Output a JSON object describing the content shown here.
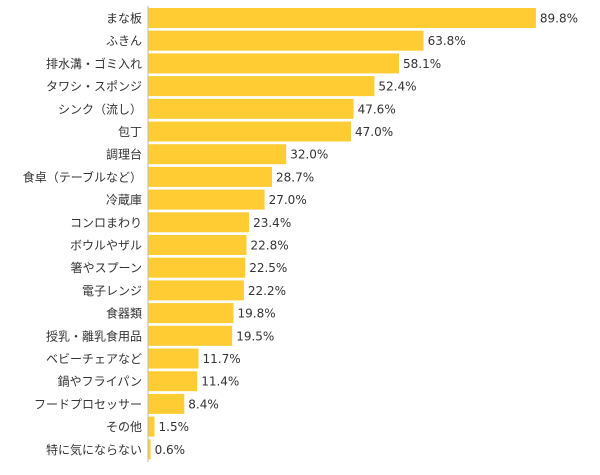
{
  "chart_data": {
    "type": "bar",
    "orientation": "horizontal",
    "title": "",
    "xlabel": "",
    "ylabel": "",
    "grid": false,
    "legend": "none",
    "bar_color": "#FFCC33",
    "axis_color": "#BBBBBB",
    "xlim": [
      0,
      100
    ],
    "categories": [
      "まな板",
      "ふきん",
      "排水溝・ゴミ入れ",
      "タワシ・スポンジ",
      "シンク（流し）",
      "包丁",
      "調理台",
      "食卓（テーブルなど）",
      "冷蔵庫",
      "コンロまわり",
      "ボウルやザル",
      "箸やスプーン",
      "電子レンジ",
      "食器類",
      "授乳・離乳食用品",
      "ベビーチェアなど",
      "鍋やフライパン",
      "フードプロセッサー",
      "その他",
      "特に気にならない"
    ],
    "values": [
      89.8,
      63.8,
      58.1,
      52.4,
      47.6,
      47.0,
      32.0,
      28.7,
      27.0,
      23.4,
      22.8,
      22.5,
      22.2,
      19.8,
      19.5,
      11.7,
      11.4,
      8.4,
      1.5,
      0.6
    ],
    "value_labels": [
      "89.8%",
      "63.8%",
      "58.1%",
      "52.4%",
      "47.6%",
      "47.0%",
      "32.0%",
      "28.7%",
      "27.0%",
      "23.4%",
      "22.8%",
      "22.5%",
      "22.2%",
      "19.8%",
      "19.5%",
      "11.7%",
      "11.4%",
      "8.4%",
      "1.5%",
      "0.6%"
    ]
  }
}
